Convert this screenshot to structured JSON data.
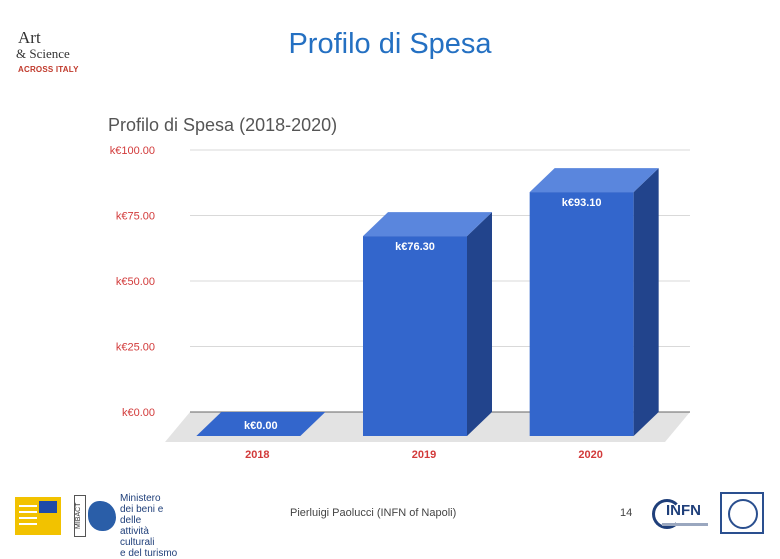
{
  "slide": {
    "title": "Profilo di Spesa",
    "footer": "Pierluigi Paolucci (INFN of Napoli)",
    "page_number": "14",
    "logo_top": {
      "line1": "Art",
      "line2": "& Science",
      "line3": "ACROSS ITALY"
    },
    "logo_mibact": {
      "side": "MIBACT",
      "text": "Ministero\ndei beni e delle\nattività culturali\ne del turismo"
    },
    "logo_infn": "INFN"
  },
  "chart_data": {
    "type": "bar",
    "title": "Profilo di Spesa (2018-2020)",
    "categories": [
      "2018",
      "2019",
      "2020"
    ],
    "values": [
      0.0,
      76.3,
      93.1
    ],
    "data_labels": [
      "k€0.00",
      "k€76.30",
      "k€93.10"
    ],
    "y_ticks": [
      0,
      25,
      50,
      75,
      100
    ],
    "y_tick_labels": [
      "k€0.00",
      "k€25.00",
      "k€50.00",
      "k€75.00",
      "k€100.00"
    ],
    "ylim": [
      0,
      100
    ],
    "xlabel": "",
    "ylabel": "",
    "grid": true,
    "colors": {
      "bar_front": "#3366cc",
      "bar_top": "#5a86dd",
      "bar_side": "#22448c",
      "floor": "#e3e3e3",
      "grid": "#d9d9d9",
      "tick_text": "#d23a3a"
    }
  }
}
